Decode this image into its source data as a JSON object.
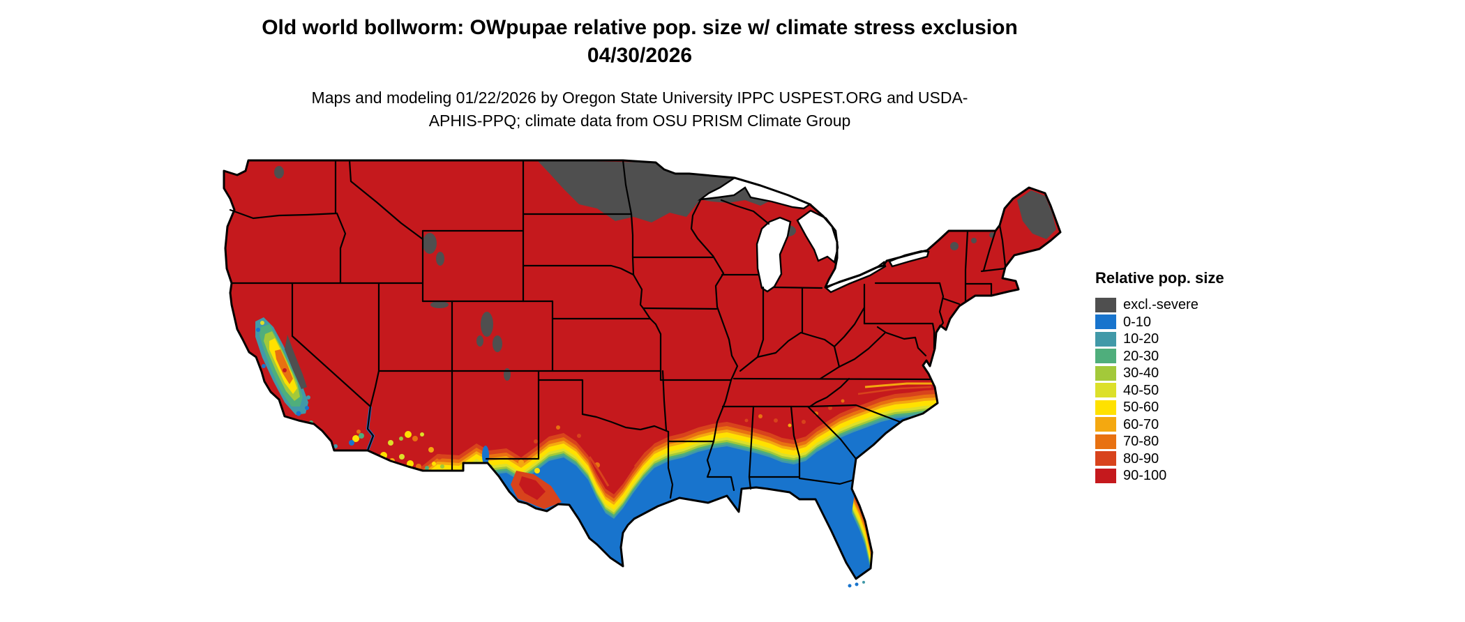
{
  "title": "Old world bollworm: OWpupae relative pop. size w/ climate stress exclusion 04/30/2026",
  "subtitle": "Maps and modeling 01/22/2026 by Oregon State University IPPC USPEST.ORG and USDA-APHIS-PPQ; climate data from OSU PRISM Climate Group",
  "legend": {
    "title": "Relative pop. size",
    "items": [
      {
        "label": "excl.-severe",
        "color": "#4F4F4F"
      },
      {
        "label": "0-10",
        "color": "#1874CD"
      },
      {
        "label": "10-20",
        "color": "#4199A8"
      },
      {
        "label": "20-30",
        "color": "#4FAE7C"
      },
      {
        "label": "30-40",
        "color": "#A3C93A"
      },
      {
        "label": "40-50",
        "color": "#DCE02A"
      },
      {
        "label": "50-60",
        "color": "#FFE100"
      },
      {
        "label": "60-70",
        "color": "#F4A810"
      },
      {
        "label": "70-80",
        "color": "#E87111"
      },
      {
        "label": "80-90",
        "color": "#D8431C"
      },
      {
        "label": "90-100",
        "color": "#C5191D"
      }
    ]
  },
  "palette": {
    "excl": "#4F4F4F",
    "0-10": "#1874CD",
    "10-20": "#4199A8",
    "20-30": "#4FAE7C",
    "30-40": "#A3C93A",
    "40-50": "#DCE02A",
    "50-60": "#FFE100",
    "60-70": "#F4A810",
    "70-80": "#E87111",
    "80-90": "#D8431C",
    "90-100": "#C5191D",
    "water": "#FFFFFF",
    "border": "#000000"
  }
}
